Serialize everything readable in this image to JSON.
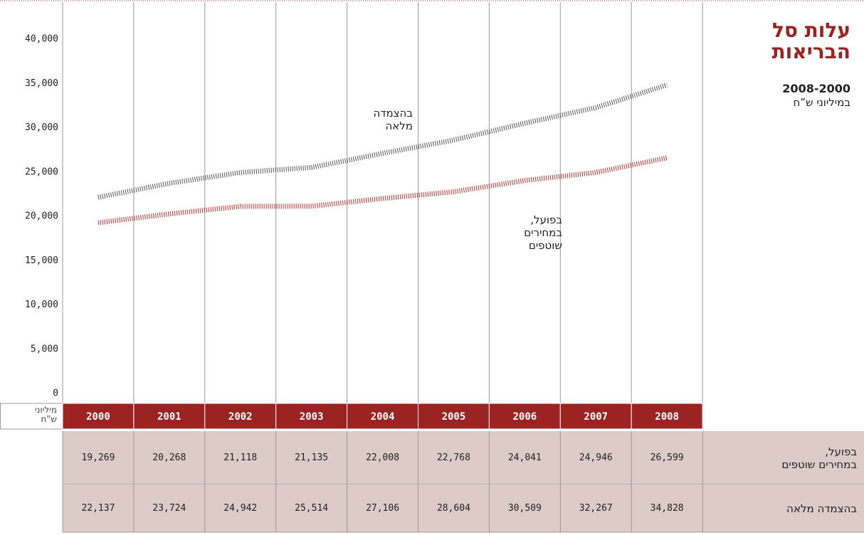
{
  "chart_data": {
    "type": "line",
    "title": "עלות סל\nהבריאות",
    "subtitle": "2008-2000",
    "unit": "במיליוני ש”ח",
    "y_label": "מיליוני\nש”ח",
    "categories": [
      "2000",
      "2001",
      "2002",
      "2003",
      "2004",
      "2005",
      "2006",
      "2007",
      "2008"
    ],
    "ylim": [
      0,
      40000
    ],
    "yticks": [
      0,
      {
        "value": 5000,
        "label": "5,000"
      },
      {
        "value": 10000,
        "label": "10,000"
      },
      {
        "value": 15000,
        "label": "15,000"
      },
      {
        "value": 20000,
        "label": "20,000"
      },
      {
        "value": 25000,
        "label": "25,000"
      },
      {
        "value": 30000,
        "label": "30,000"
      },
      {
        "value": 35000,
        "label": "35,000"
      },
      {
        "value": 40000,
        "label": "40,000"
      }
    ],
    "series": [
      {
        "name": "בפועל,\nבמחירים שוטפים",
        "annotation": "בפועל,\nבמחירים\nשוטפים",
        "color": "#c8302e",
        "values": [
          19269,
          20268,
          21118,
          21135,
          22008,
          22768,
          24041,
          24946,
          26599
        ],
        "value_labels": [
          "19,269",
          "20,268",
          "21,118",
          "21,135",
          "22,008",
          "22,768",
          "24,041",
          "24,946",
          "26,599"
        ]
      },
      {
        "name": "בהצמדה מלאה",
        "annotation": "בהצמדה\nמלאה",
        "color": "#555555",
        "values": [
          22137,
          23724,
          24942,
          25514,
          27106,
          28604,
          30509,
          32267,
          34828
        ],
        "value_labels": [
          "22,137",
          "23,724",
          "24,942",
          "25,514",
          "27,106",
          "28,604",
          "30,509",
          "32,267",
          "34,828"
        ]
      }
    ]
  }
}
